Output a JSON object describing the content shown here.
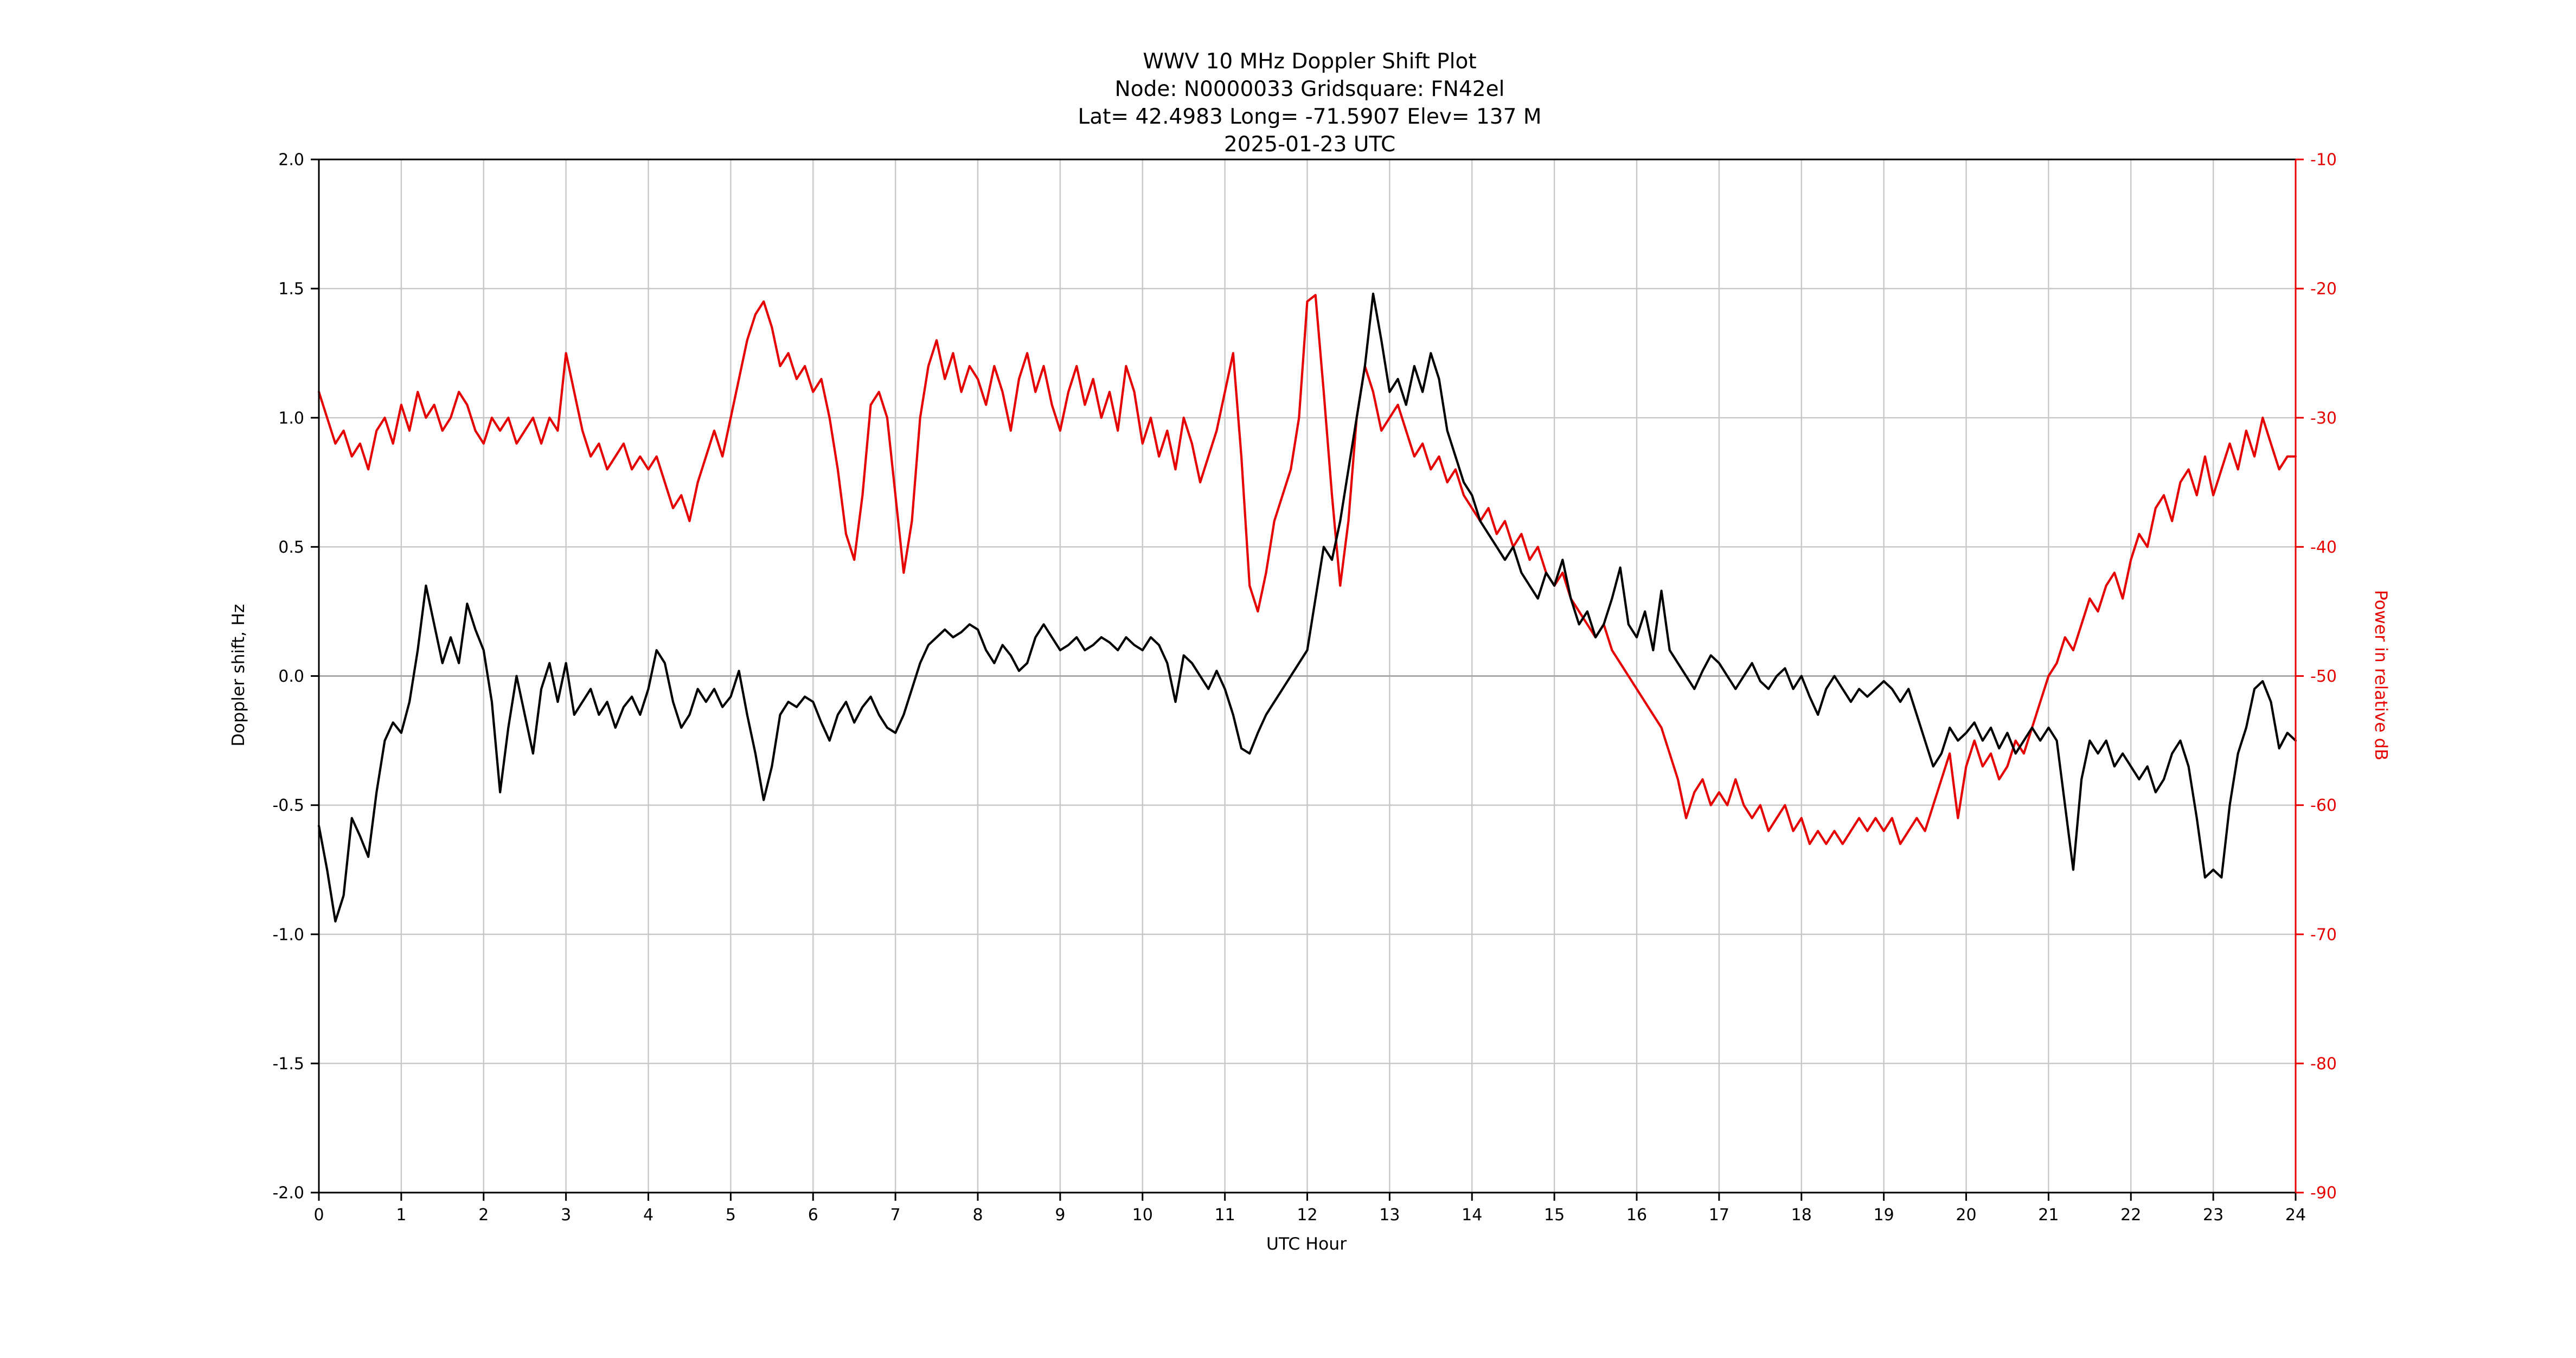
{
  "header": {
    "line1": "WWV 10 MHz Doppler Shift Plot",
    "line2": "Node:  N0000033     Gridsquare:  FN42el",
    "line3": "Lat= 42.4983    Long= -71.5907    Elev= 137 M",
    "line4": "2025-01-23  UTC"
  },
  "axes": {
    "x_label": "UTC Hour",
    "y_left_label": "Doppler shift, Hz",
    "y_right_label": "Power in relative dB",
    "x_min": 0,
    "x_max": 24,
    "x_tick_step": 1,
    "x_tick_labels": [
      "0",
      "1",
      "2",
      "3",
      "4",
      "5",
      "6",
      "7",
      "8",
      "9",
      "10",
      "11",
      "12",
      "13",
      "14",
      "15",
      "16",
      "17",
      "18",
      "19",
      "20",
      "21",
      "22",
      "23",
      "24"
    ],
    "y_left_min": -2.0,
    "y_left_max": 2.0,
    "y_left_tick_step": 0.5,
    "y_left_tick_labels": [
      "-2.0",
      "-1.5",
      "-1.0",
      "-0.5",
      "0.0",
      "0.5",
      "1.0",
      "1.5",
      "2.0"
    ],
    "y_right_min": -90,
    "y_right_max": -10,
    "y_right_tick_step": 10,
    "y_right_tick_labels": [
      "-90",
      "-80",
      "-70",
      "-60",
      "-50",
      "-40",
      "-30",
      "-20",
      "-10"
    ],
    "grid": true
  },
  "colors": {
    "doppler_line": "#000000",
    "power_line": "#e60000",
    "grid": "#c8c8c8",
    "zero_line": "#a8a8a8",
    "spine": "#000000",
    "right_spine": "#e60000"
  },
  "chart_data": {
    "type": "line",
    "title": "WWV 10 MHz Doppler Shift Plot",
    "xlabel": "UTC Hour",
    "ylabel_left": "Doppler shift, Hz",
    "ylabel_right": "Power in relative dB",
    "xlim": [
      0,
      24
    ],
    "ylim_left": [
      -2.0,
      2.0
    ],
    "ylim_right": [
      -90,
      -10
    ],
    "x_step_hours": 0.1,
    "series": [
      {
        "name": "Doppler shift (Hz, left axis)",
        "axis": "left",
        "color": "#000000",
        "values": [
          -0.58,
          -0.75,
          -0.95,
          -0.85,
          -0.55,
          -0.62,
          -0.7,
          -0.45,
          -0.25,
          -0.18,
          -0.22,
          -0.1,
          0.1,
          0.35,
          0.2,
          0.05,
          0.15,
          0.05,
          0.28,
          0.18,
          0.1,
          -0.1,
          -0.45,
          -0.2,
          0.0,
          -0.15,
          -0.3,
          -0.05,
          0.05,
          -0.1,
          0.05,
          -0.15,
          -0.1,
          -0.05,
          -0.15,
          -0.1,
          -0.2,
          -0.12,
          -0.08,
          -0.15,
          -0.05,
          0.1,
          0.05,
          -0.1,
          -0.2,
          -0.15,
          -0.05,
          -0.1,
          -0.05,
          -0.12,
          -0.08,
          0.02,
          -0.15,
          -0.3,
          -0.48,
          -0.35,
          -0.15,
          -0.1,
          -0.12,
          -0.08,
          -0.1,
          -0.18,
          -0.25,
          -0.15,
          -0.1,
          -0.18,
          -0.12,
          -0.08,
          -0.15,
          -0.2,
          -0.22,
          -0.15,
          -0.05,
          0.05,
          0.12,
          0.15,
          0.18,
          0.15,
          0.17,
          0.2,
          0.18,
          0.1,
          0.05,
          0.12,
          0.08,
          0.02,
          0.05,
          0.15,
          0.2,
          0.15,
          0.1,
          0.12,
          0.15,
          0.1,
          0.12,
          0.15,
          0.13,
          0.1,
          0.15,
          0.12,
          0.1,
          0.15,
          0.12,
          0.05,
          -0.1,
          0.08,
          0.05,
          0.0,
          -0.05,
          0.02,
          -0.05,
          -0.15,
          -0.28,
          -0.3,
          -0.22,
          -0.15,
          -0.1,
          -0.05,
          0.0,
          0.05,
          0.1,
          0.3,
          0.5,
          0.45,
          0.6,
          0.8,
          1.0,
          1.2,
          1.48,
          1.3,
          1.1,
          1.15,
          1.05,
          1.2,
          1.1,
          1.25,
          1.15,
          0.95,
          0.85,
          0.75,
          0.7,
          0.6,
          0.55,
          0.5,
          0.45,
          0.5,
          0.4,
          0.35,
          0.3,
          0.4,
          0.35,
          0.45,
          0.3,
          0.2,
          0.25,
          0.15,
          0.2,
          0.3,
          0.42,
          0.2,
          0.15,
          0.25,
          0.1,
          0.33,
          0.1,
          0.05,
          0.0,
          -0.05,
          0.02,
          0.08,
          0.05,
          0.0,
          -0.05,
          0.0,
          0.05,
          -0.02,
          -0.05,
          0.0,
          0.03,
          -0.05,
          0.0,
          -0.08,
          -0.15,
          -0.05,
          0.0,
          -0.05,
          -0.1,
          -0.05,
          -0.08,
          -0.05,
          -0.02,
          -0.05,
          -0.1,
          -0.05,
          -0.15,
          -0.25,
          -0.35,
          -0.3,
          -0.2,
          -0.25,
          -0.22,
          -0.18,
          -0.25,
          -0.2,
          -0.28,
          -0.22,
          -0.3,
          -0.25,
          -0.2,
          -0.25,
          -0.2,
          -0.25,
          -0.5,
          -0.75,
          -0.4,
          -0.25,
          -0.3,
          -0.25,
          -0.35,
          -0.3,
          -0.35,
          -0.4,
          -0.35,
          -0.45,
          -0.4,
          -0.3,
          -0.25,
          -0.35,
          -0.55,
          -0.78,
          -0.75,
          -0.78,
          -0.5,
          -0.3,
          -0.2,
          -0.05,
          -0.02,
          -0.1,
          -0.28,
          -0.22,
          -0.25
        ]
      },
      {
        "name": "Power in relative dB (right axis)",
        "axis": "right",
        "color": "#e60000",
        "values": [
          -28,
          -30,
          -32,
          -31,
          -33,
          -32,
          -34,
          -31,
          -30,
          -32,
          -29,
          -31,
          -28,
          -30,
          -29,
          -31,
          -30,
          -28,
          -29,
          -31,
          -32,
          -30,
          -31,
          -30,
          -32,
          -31,
          -30,
          -32,
          -30,
          -31,
          -25,
          -28,
          -31,
          -33,
          -32,
          -34,
          -33,
          -32,
          -34,
          -33,
          -34,
          -33,
          -35,
          -37,
          -36,
          -38,
          -35,
          -33,
          -31,
          -33,
          -30,
          -27,
          -24,
          -22,
          -21,
          -23,
          -26,
          -25,
          -27,
          -26,
          -28,
          -27,
          -30,
          -34,
          -39,
          -41,
          -36,
          -29,
          -28,
          -30,
          -36,
          -42,
          -38,
          -30,
          -26,
          -24,
          -27,
          -25,
          -28,
          -26,
          -27,
          -29,
          -26,
          -28,
          -31,
          -27,
          -25,
          -28,
          -26,
          -29,
          -31,
          -28,
          -26,
          -29,
          -27,
          -30,
          -28,
          -31,
          -26,
          -28,
          -32,
          -30,
          -33,
          -31,
          -34,
          -30,
          -32,
          -35,
          -33,
          -31,
          -28,
          -25,
          -33,
          -43,
          -45,
          -42,
          -38,
          -36,
          -34,
          -30,
          -21,
          -20.5,
          -28,
          -36,
          -43,
          -38,
          -30,
          -26,
          -28,
          -31,
          -30,
          -29,
          -31,
          -33,
          -32,
          -34,
          -33,
          -35,
          -34,
          -36,
          -37,
          -38,
          -37,
          -39,
          -38,
          -40,
          -39,
          -41,
          -40,
          -42,
          -43,
          -42,
          -44,
          -45,
          -46,
          -47,
          -46,
          -48,
          -49,
          -50,
          -51,
          -52,
          -53,
          -54,
          -56,
          -58,
          -61,
          -59,
          -58,
          -60,
          -59,
          -60,
          -58,
          -60,
          -61,
          -60,
          -62,
          -61,
          -60,
          -62,
          -61,
          -63,
          -62,
          -63,
          -62,
          -63,
          -62,
          -61,
          -62,
          -61,
          -62,
          -61,
          -63,
          -62,
          -61,
          -62,
          -60,
          -58,
          -56,
          -61,
          -57,
          -55,
          -57,
          -56,
          -58,
          -57,
          -55,
          -56,
          -54,
          -52,
          -50,
          -49,
          -47,
          -48,
          -46,
          -44,
          -45,
          -43,
          -42,
          -44,
          -41,
          -39,
          -40,
          -37,
          -36,
          -38,
          -35,
          -34,
          -36,
          -33,
          -36,
          -34,
          -32,
          -34,
          -31,
          -33,
          -30,
          -32,
          -34,
          -33,
          -33
        ]
      }
    ]
  }
}
